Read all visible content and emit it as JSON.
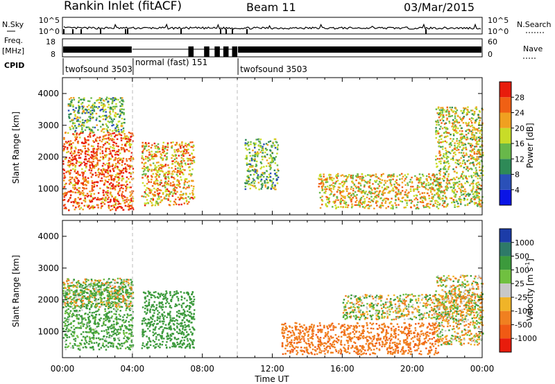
{
  "header": {
    "radar": "Rankin Inlet (fitACF)",
    "beam": "Beam 11",
    "date": "03/Mar/2015"
  },
  "status": {
    "nsky_label": "N.Sky",
    "nsky_ticks": [
      "10^5",
      "10^0"
    ],
    "nsky_ticks_right": [
      "10^5",
      "10^0"
    ],
    "nsearch_label": "N.Search",
    "freq_label": "Freq.",
    "freq_unit": "[MHz]",
    "freq_ticks": [
      "18",
      "8"
    ],
    "nave_ticks": [
      "60",
      "0"
    ],
    "nave_label": "Nave",
    "cpid_label": "CPID",
    "cpid_segments": [
      {
        "label": "twofsound 3503",
        "start_h": 0,
        "end_h": 4
      },
      {
        "label": "normal (fast) 151",
        "start_h": 4,
        "end_h": 10
      },
      {
        "label": "twofsound 3503",
        "start_h": 10,
        "end_h": 24
      }
    ]
  },
  "axes": {
    "x_ticks": [
      "00:00",
      "04:00",
      "08:00",
      "12:00",
      "16:00",
      "20:00",
      "00:00"
    ],
    "x_label": "Time UT",
    "y_label": "Slant Range [km]",
    "y_ticks": [
      "1000",
      "2000",
      "3000",
      "4000"
    ]
  },
  "power_scale": {
    "label": "Power [dB]",
    "ticks": [
      "4",
      "8",
      "12",
      "16",
      "20",
      "24",
      "28"
    ],
    "colors": [
      "#0a14e6",
      "#2a50b8",
      "#2e8a57",
      "#68b84a",
      "#c8dc28",
      "#f0a020",
      "#f06014",
      "#e81c0c"
    ]
  },
  "velocity_scale": {
    "label": "Velocity [m s",
    "label_sup": "-1",
    "label_end": "]",
    "ticks": [
      "1000",
      "500",
      "100",
      "25",
      "-25",
      "-100",
      "-500",
      "-1000"
    ],
    "colors": [
      "#1c3ca8",
      "#2e7a68",
      "#3c9a3c",
      "#70c040",
      "#c8c8c8",
      "#f0b428",
      "#f08020",
      "#f05a14",
      "#e81c0c"
    ]
  },
  "chart_data": [
    {
      "type": "heatmap",
      "title": "Power",
      "x_range_hours": [
        0,
        24
      ],
      "y_range_km": [
        180,
        4500
      ],
      "colorbar": "Power [dB]",
      "echo_regions": [
        {
          "t0": 0.0,
          "t1": 4.0,
          "r0": 350,
          "r1": 2800,
          "value_db": 26
        },
        {
          "t0": 0.3,
          "t1": 3.5,
          "r0": 2800,
          "r1": 3900,
          "value_db": 14
        },
        {
          "t0": 4.5,
          "t1": 7.5,
          "r0": 500,
          "r1": 2500,
          "value_db": 22
        },
        {
          "t0": 10.4,
          "t1": 12.3,
          "r0": 1000,
          "r1": 2600,
          "value_db": 14
        },
        {
          "t0": 14.6,
          "t1": 21.5,
          "r0": 400,
          "r1": 1500,
          "value_db": 20
        },
        {
          "t0": 21.3,
          "t1": 24.0,
          "r0": 450,
          "r1": 3600,
          "value_db": 18
        }
      ]
    },
    {
      "type": "heatmap",
      "title": "Velocity",
      "x_range_hours": [
        0,
        24
      ],
      "y_range_km": [
        180,
        4500
      ],
      "colorbar": "Velocity [m s-1]",
      "echo_regions": [
        {
          "t0": 0.0,
          "t1": 4.0,
          "r0": 450,
          "r1": 2600,
          "value_ms": 200
        },
        {
          "t0": 0.0,
          "t1": 4.0,
          "r0": 1800,
          "r1": 2700,
          "value_ms": 0
        },
        {
          "t0": 4.5,
          "t1": 7.5,
          "r0": 500,
          "r1": 2300,
          "value_ms": 300
        },
        {
          "t0": 12.5,
          "t1": 21.5,
          "r0": 300,
          "r1": 1300,
          "value_ms": -400
        },
        {
          "t0": 16.0,
          "t1": 24.0,
          "r0": 1400,
          "r1": 2200,
          "value_ms": 0
        },
        {
          "t0": 21.3,
          "t1": 24.0,
          "r0": 600,
          "r1": 2800,
          "value_ms": -50
        }
      ]
    }
  ]
}
